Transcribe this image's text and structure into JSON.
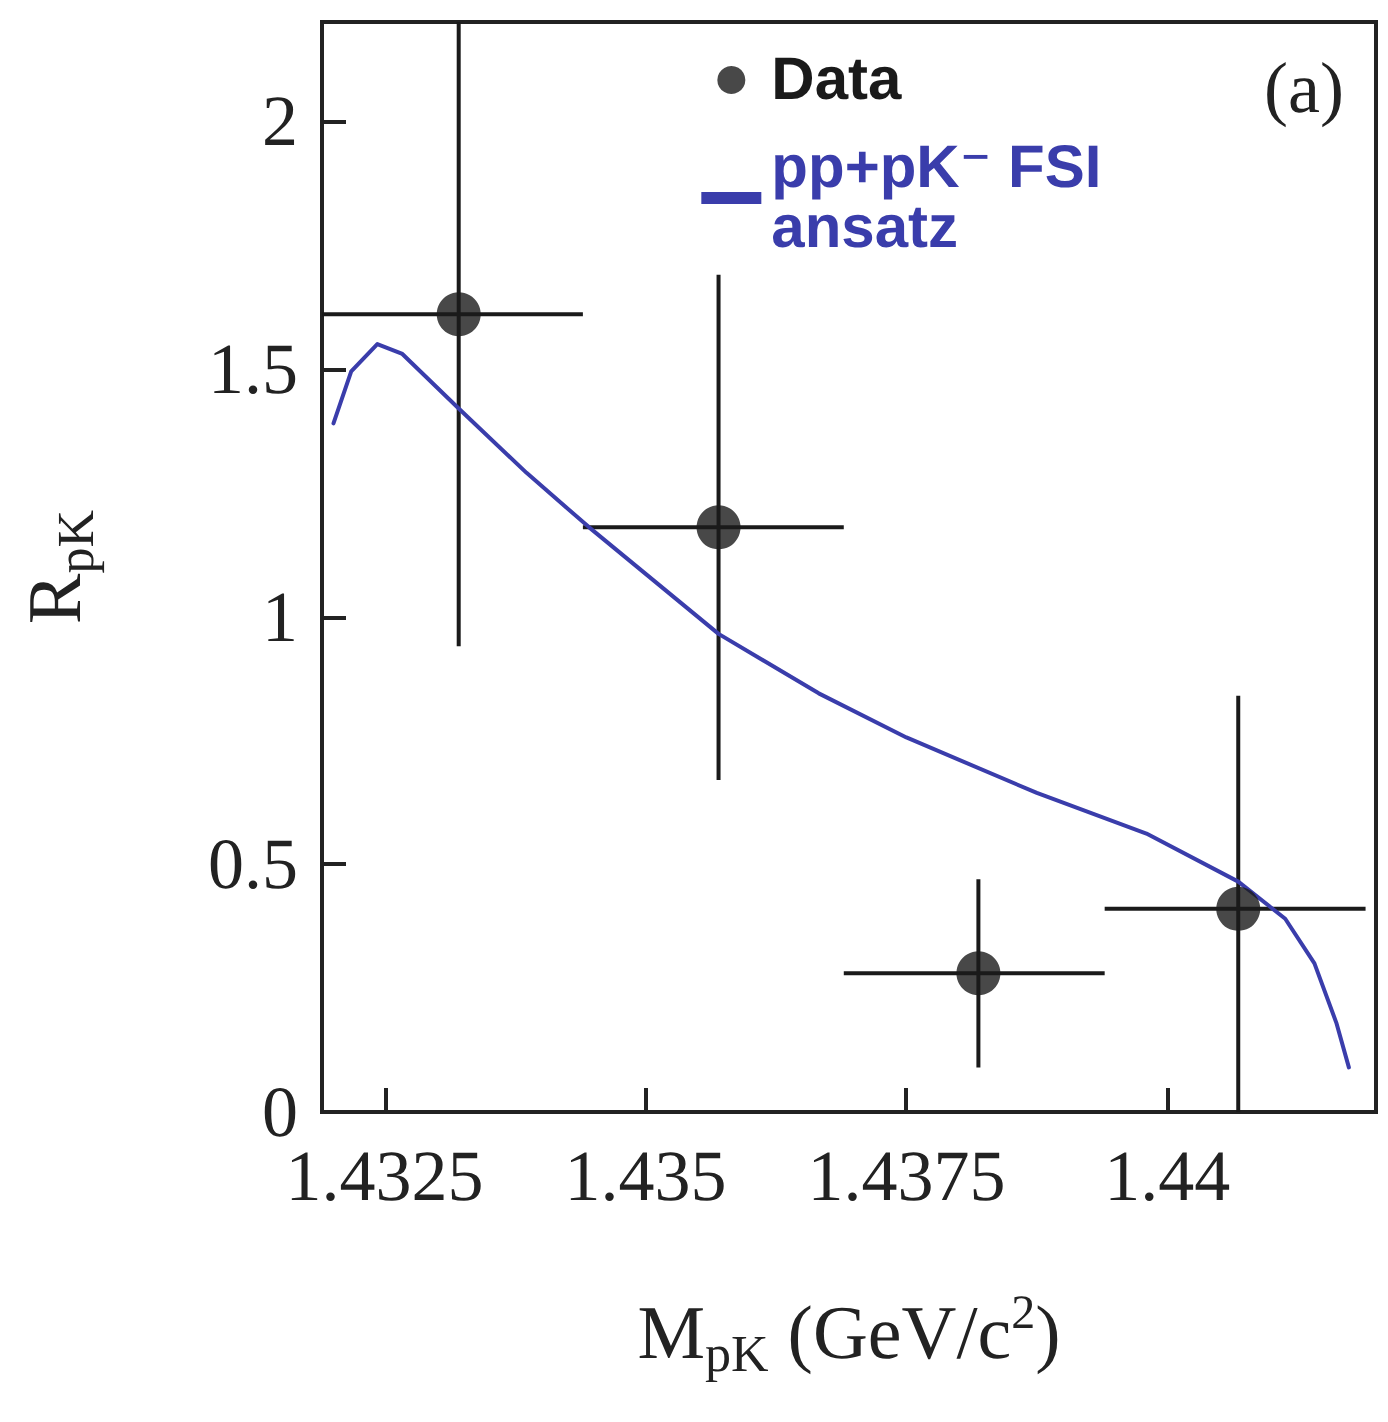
{
  "chart_data": {
    "type": "scatter",
    "xlabel": "M$_{pK}$ (GeV/c$^{2}$)",
    "ylabel": "R$_{pK}$",
    "annotations": [
      "(a)"
    ],
    "xlim": [
      1.4319,
      1.442
    ],
    "xticks": [
      1.4325,
      1.435,
      1.4375,
      1.44
    ],
    "ylim": [
      0,
      2.2
    ],
    "yticks": [
      0,
      0.5,
      1,
      1.5,
      2
    ],
    "grid": false,
    "legend": "top right",
    "marker": "circle",
    "series": [
      {
        "name": "Data",
        "color": "#1a1a1a",
        "x": [
          1.43321,
          1.4357,
          1.43819,
          1.44068
        ],
        "values": [
          1.61,
          1.18,
          0.28,
          0.41
        ],
        "errors": [
          [
            0.94,
            2.2
          ],
          [
            0.67,
            1.69
          ],
          [
            0.09,
            0.47
          ],
          [
            0,
            0.84
          ]
        ],
        "xerrors": [
          [
            1.4319,
            1.4344
          ],
          [
            1.4344,
            1.4369
          ],
          [
            1.4369,
            1.4394
          ],
          [
            1.4394,
            1.4419
          ]
        ]
      },
      {
        "name": "pp+pK⁻ FSI ansatz",
        "type": "line",
        "color": "#3a3dab",
        "marker": "none",
        "x": [
          1.43201,
          1.43218,
          1.43243,
          1.43267,
          1.43321,
          1.43386,
          1.43446,
          1.4357,
          1.43666,
          1.4375,
          1.43875,
          1.4398,
          1.44068,
          1.44113,
          1.44141,
          1.44162,
          1.44174
        ],
        "values": [
          1.39,
          1.495,
          1.55,
          1.53,
          1.42,
          1.29,
          1.18,
          0.965,
          0.845,
          0.756,
          0.644,
          0.562,
          0.465,
          0.39,
          0.3,
          0.18,
          0.09
        ]
      }
    ]
  }
}
